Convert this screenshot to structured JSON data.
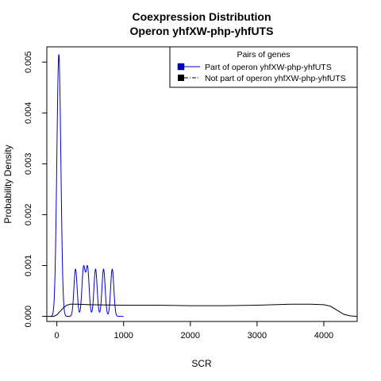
{
  "chart_data": {
    "type": "line",
    "title": "Coexpression Distribution",
    "subtitle": "Operon yhfXW-php-yhfUTS",
    "xlabel": "SCR",
    "ylabel": "Probability Density",
    "xlim": [
      -150,
      4500
    ],
    "ylim": [
      -0.0001,
      0.0053
    ],
    "x_ticks": [
      0,
      1000,
      2000,
      3000,
      4000
    ],
    "y_ticks": [
      0.0,
      0.001,
      0.002,
      0.003,
      0.004,
      0.005
    ],
    "x_tick_labels": [
      "0",
      "1000",
      "2000",
      "3000",
      "4000"
    ],
    "y_tick_labels": [
      "0.000",
      "0.001",
      "0.002",
      "0.003",
      "0.004",
      "0.005"
    ],
    "legend": {
      "title": "Pairs of genes",
      "placement": "top-right",
      "entries": [
        "Part of operon yhfXW-php-yhfUTS",
        "Not part of operon yhfXW-php-yhfUTS"
      ]
    },
    "series": [
      {
        "name": "Part of operon yhfXW-php-yhfUTS",
        "color": "#0000cc",
        "style": "solid",
        "peaks": [
          {
            "center": 30,
            "height": 0.00515,
            "sd": 30
          },
          {
            "center": 280,
            "height": 0.00093,
            "sd": 24
          },
          {
            "center": 400,
            "height": 0.00095,
            "sd": 24
          },
          {
            "center": 460,
            "height": 0.00095,
            "sd": 24
          },
          {
            "center": 580,
            "height": 0.00093,
            "sd": 24
          },
          {
            "center": 700,
            "height": 0.00093,
            "sd": 24
          },
          {
            "center": 830,
            "height": 0.00093,
            "sd": 24
          }
        ]
      },
      {
        "name": "Not part of operon yhfXW-php-yhfUTS",
        "color": "#000000",
        "style": "dashdot",
        "x": [
          -150,
          -50,
          0,
          50,
          100,
          150,
          200,
          300,
          500,
          1000,
          1500,
          2000,
          2500,
          3000,
          3500,
          3800,
          4000,
          4100,
          4200,
          4300,
          4400,
          4500
        ],
        "y": [
          0.0,
          0.0,
          3e-05,
          0.0001,
          0.00017,
          0.00022,
          0.00024,
          0.00024,
          0.00023,
          0.00022,
          0.00022,
          0.00021,
          0.00021,
          0.00022,
          0.00024,
          0.00024,
          0.00023,
          0.0002,
          0.00012,
          4e-05,
          1e-05,
          0.0
        ]
      }
    ]
  }
}
